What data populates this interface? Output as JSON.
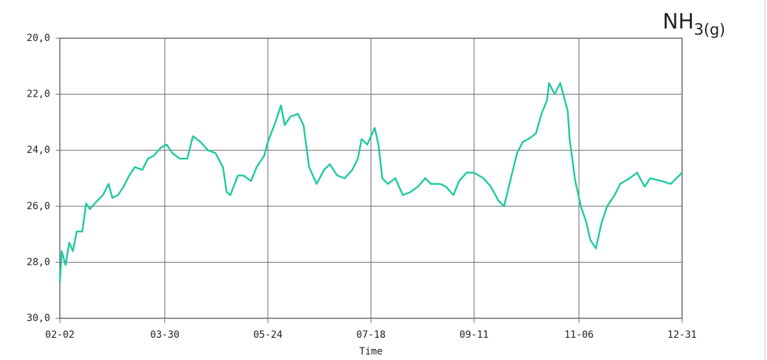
{
  "chart_data": {
    "type": "line",
    "title": "NH",
    "title_subscript": "3(g)",
    "x_label": "Time",
    "xlim": [
      "02-02",
      "12-31"
    ],
    "xticks": [
      "02-02",
      "03-30",
      "05-24",
      "07-18",
      "09-11",
      "11-06",
      "12-31"
    ],
    "ylim": [
      20,
      30
    ],
    "y_inverted": true,
    "yticks": [
      {
        "value": 20,
        "label": "20,0"
      },
      {
        "value": 22,
        "label": "22,0"
      },
      {
        "value": 24,
        "label": "24,0"
      },
      {
        "value": 26,
        "label": "26,0"
      },
      {
        "value": 28,
        "label": "28,0"
      },
      {
        "value": 30,
        "label": "30,0"
      }
    ],
    "grid": true,
    "x": [
      "02-02",
      "02-03",
      "02-05",
      "02-07",
      "02-09",
      "02-11",
      "02-14",
      "02-16",
      "02-18",
      "02-22",
      "02-25",
      "02-28",
      "03-02",
      "03-05",
      "03-08",
      "03-11",
      "03-14",
      "03-18",
      "03-21",
      "03-24",
      "03-28",
      "03-31",
      "04-03",
      "04-07",
      "04-11",
      "04-14",
      "04-18",
      "04-22",
      "04-26",
      "04-30",
      "05-02",
      "05-04",
      "05-08",
      "05-11",
      "05-15",
      "05-18",
      "05-22",
      "05-24",
      "05-28",
      "05-31",
      "06-02",
      "06-05",
      "06-09",
      "06-12",
      "06-15",
      "06-19",
      "06-23",
      "06-26",
      "06-30",
      "07-04",
      "07-08",
      "07-11",
      "07-13",
      "07-16",
      "07-20",
      "07-22",
      "07-24",
      "07-27",
      "07-31",
      "08-04",
      "08-08",
      "08-12",
      "08-16",
      "08-19",
      "08-24",
      "08-27",
      "08-31",
      "09-03",
      "09-07",
      "09-11",
      "09-16",
      "09-20",
      "09-24",
      "09-27",
      "10-01",
      "10-04",
      "10-07",
      "10-10",
      "10-14",
      "10-17",
      "10-20",
      "10-21",
      "10-24",
      "10-27",
      "10-31",
      "11-01",
      "11-04",
      "11-07",
      "11-10",
      "11-12",
      "11-15",
      "11-18",
      "11-21",
      "11-25",
      "11-28",
      "12-03",
      "12-07",
      "12-11",
      "12-14",
      "12-20",
      "12-25",
      "12-31"
    ],
    "series": [
      {
        "color": "#1ec9a0",
        "values": [
          28.7,
          27.6,
          28.1,
          27.3,
          27.6,
          26.9,
          26.9,
          25.9,
          26.1,
          25.8,
          25.6,
          25.2,
          25.7,
          25.6,
          25.3,
          24.9,
          24.6,
          24.7,
          24.3,
          24.2,
          23.9,
          23.8,
          24.1,
          24.3,
          24.3,
          23.5,
          23.7,
          24.0,
          24.1,
          24.6,
          25.5,
          25.6,
          24.9,
          24.9,
          25.1,
          24.6,
          24.2,
          23.7,
          23.0,
          22.4,
          23.1,
          22.8,
          22.7,
          23.1,
          24.6,
          25.2,
          24.7,
          24.5,
          24.9,
          25.0,
          24.7,
          24.3,
          23.6,
          23.8,
          23.2,
          23.8,
          25.0,
          25.2,
          25.0,
          25.6,
          25.5,
          25.3,
          25.0,
          25.2,
          25.2,
          25.3,
          25.6,
          25.1,
          24.8,
          24.8,
          25.0,
          25.3,
          25.8,
          26.0,
          24.9,
          24.1,
          23.7,
          23.6,
          23.4,
          22.7,
          22.2,
          21.6,
          22.0,
          21.6,
          22.6,
          23.6,
          25.1,
          26.0,
          26.6,
          27.2,
          27.5,
          26.6,
          26.0,
          25.6,
          25.2,
          25.0,
          24.8,
          25.3,
          25.0,
          25.1,
          25.2,
          24.8
        ]
      }
    ]
  }
}
